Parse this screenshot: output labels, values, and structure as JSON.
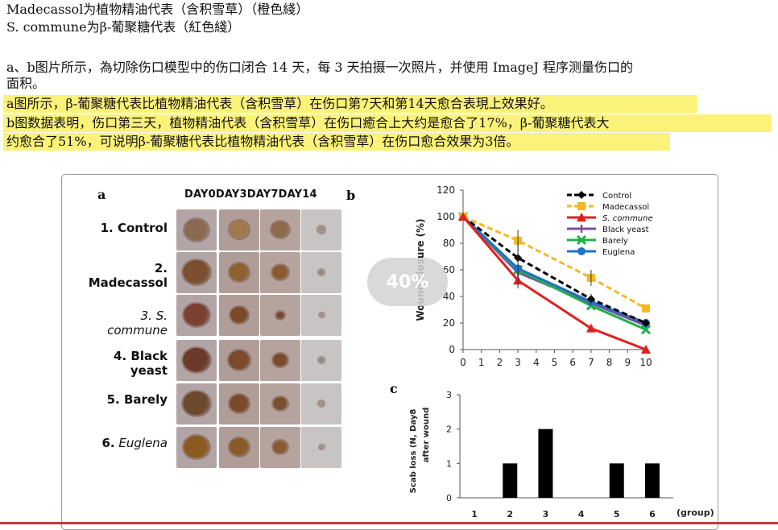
{
  "intro": {
    "line1": "Madecassol为植物精油代表（含积雪草）（橙色綫）",
    "line2": "S. commune为β-葡聚糖代表（紅色綫）",
    "para1a": "a、b图片所示，為切除伤口模型中的伤口闭合 14 天，每 3 天拍摄一次照片，并使用 ImageJ 程序测量伤口的",
    "para1b": "面积。",
    "hl1": "a图所示，β-葡聚糖代表比植物精油代表（含积雪草）在伤口第7天和第14天愈合表現上效果好。",
    "hl2a": "b图数据表明，伤口第三天，植物精油代表（含积雪草）在伤口癒合上大约是愈合了17%，β-葡聚糖代表大",
    "hl2b": "约愈合了51%，可说明β-葡聚糖代表比植物精油代表（含积雪草）在伤口愈合效果为3倍。"
  },
  "colors": {
    "highlight": "#fbf27a",
    "bottom_rule": "#c23b3b"
  },
  "panel_a": {
    "letter": "a",
    "day_header": "DAY0DAY3DAY7DAY14",
    "rows": [
      {
        "num": "1.",
        "name": "Control"
      },
      {
        "num": "2.",
        "name": "Madecassol"
      },
      {
        "num": "3.",
        "name": "S. commune"
      },
      {
        "num": "4.",
        "name": "Black yeast"
      },
      {
        "num": "5.",
        "name": "Barely"
      },
      {
        "num": "6.",
        "name": "Euglena"
      }
    ]
  },
  "progress_overlay": "40%",
  "chart_data": [
    {
      "type": "line",
      "panel": "b",
      "xlabel": "",
      "ylabel": "Wound closure (%)",
      "x": [
        0,
        3,
        7,
        10
      ],
      "xticks": [
        0,
        1,
        2,
        3,
        4,
        5,
        6,
        7,
        8,
        9,
        10
      ],
      "yticks": [
        0,
        20,
        40,
        60,
        80,
        100,
        120
      ],
      "xlim": [
        0,
        10
      ],
      "ylim": [
        0,
        120
      ],
      "legend_position": "top-right",
      "series": [
        {
          "name": "Control",
          "values": [
            100,
            69,
            38,
            20
          ],
          "color": "#000000",
          "style": "dashed",
          "marker": "diamond"
        },
        {
          "name": "Madecassol",
          "values": [
            100,
            82,
            54,
            31
          ],
          "color": "#f4b921",
          "style": "dashed",
          "marker": "square"
        },
        {
          "name": "S. commune",
          "values": [
            100,
            52,
            16,
            0
          ],
          "color": "#e02020",
          "style": "solid",
          "marker": "triangle"
        },
        {
          "name": "Black yeast",
          "values": [
            100,
            58,
            35,
            18
          ],
          "color": "#7a4fa0",
          "style": "solid",
          "marker": "cross"
        },
        {
          "name": "Barely",
          "values": [
            100,
            60,
            33,
            15
          ],
          "color": "#21b04a",
          "style": "solid",
          "marker": "x"
        },
        {
          "name": "Euglena",
          "values": [
            100,
            61,
            36,
            20
          ],
          "color": "#1c73c8",
          "style": "solid",
          "marker": "circle"
        }
      ]
    },
    {
      "type": "bar",
      "panel": "c",
      "ylabel": "Scab loss (N, Day8 after wound)",
      "xlabel": "(group)",
      "categories": [
        "1",
        "2",
        "3",
        "4",
        "5",
        "6"
      ],
      "values": [
        0,
        1,
        2,
        0,
        1,
        1
      ],
      "ylim": [
        0,
        3
      ],
      "yticks": [
        0,
        1,
        2,
        3
      ],
      "color": "#000000"
    }
  ]
}
